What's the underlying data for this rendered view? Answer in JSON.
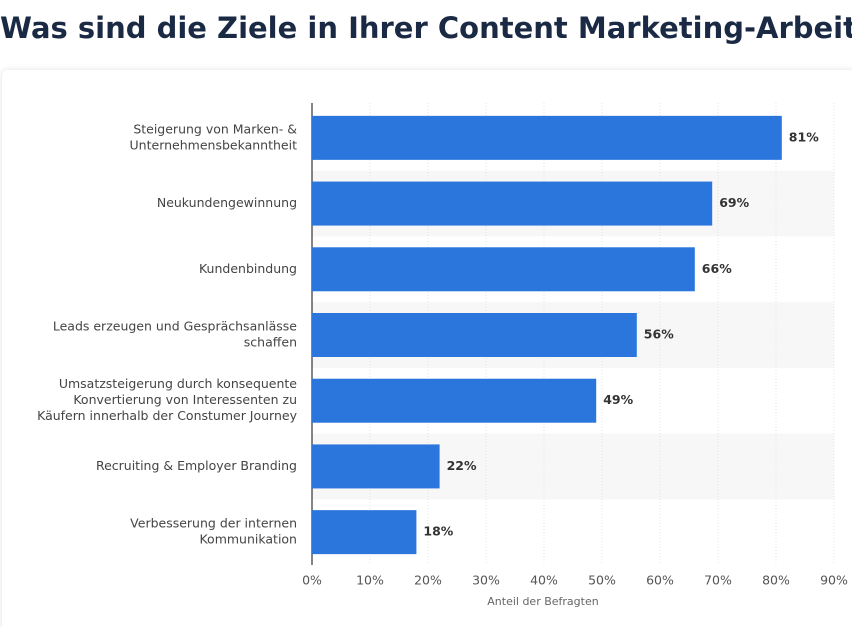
{
  "chart_data": {
    "type": "bar",
    "orientation": "horizontal",
    "title": "Was sind die Ziele in Ihrer Content Marketing-Arbeit?",
    "categories": [
      [
        "Steigerung von Marken- &",
        "Unternehmensbekanntheit"
      ],
      [
        "Neukundengewinnung"
      ],
      [
        "Kundenbindung"
      ],
      [
        "Leads erzeugen und Gesprächsanlässe",
        "schaffen"
      ],
      [
        "Umsatzsteigerung durch konsequente",
        "Konvertierung von Interessenten zu",
        "Käufern innerhalb der Constumer Journey"
      ],
      [
        "Recruiting & Employer Branding"
      ],
      [
        "Verbesserung der internen",
        "Kommunikation"
      ]
    ],
    "values": [
      81,
      69,
      66,
      56,
      49,
      22,
      18
    ],
    "value_labels": [
      "81%",
      "69%",
      "66%",
      "56%",
      "49%",
      "22%",
      "18%"
    ],
    "color": "#2a76dd",
    "xlabel": "Anteil der Befragten",
    "xlim": [
      0,
      90
    ],
    "xticks": [
      {
        "value": 0,
        "label": "0%"
      },
      {
        "value": 10,
        "label": "10%"
      },
      {
        "value": 20,
        "label": "20%"
      },
      {
        "value": 30,
        "label": "30%"
      },
      {
        "value": 40,
        "label": "40%"
      },
      {
        "value": 50,
        "label": "50%"
      },
      {
        "value": 60,
        "label": "60%"
      },
      {
        "value": 70,
        "label": "70%"
      },
      {
        "value": 80,
        "label": "80%"
      },
      {
        "value": 90,
        "label": "90%"
      }
    ],
    "grid": true
  }
}
